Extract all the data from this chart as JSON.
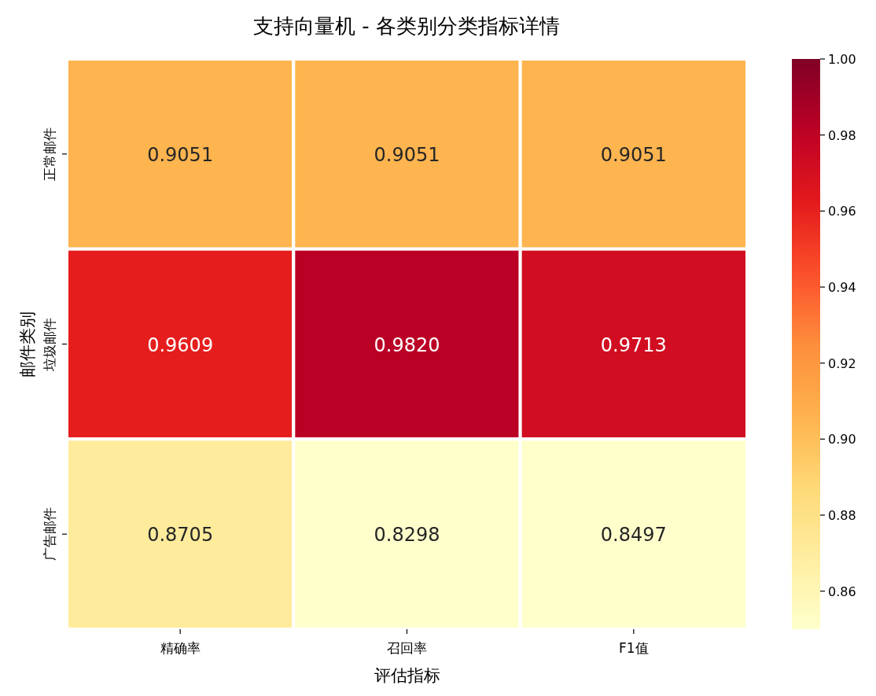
{
  "chart_data": {
    "type": "heatmap",
    "title": "支持向量机 - 各类别分类指标详情",
    "xlabel": "评估指标",
    "ylabel": "邮件类别",
    "categories": [
      "精确率",
      "召回率",
      "F1值"
    ],
    "y_categories": [
      "正常邮件",
      "垃圾邮件",
      "广告邮件"
    ],
    "cells": [
      [
        0.9051,
        0.9051,
        0.9051
      ],
      [
        0.9609,
        0.982,
        0.9713
      ],
      [
        0.8705,
        0.8298,
        0.8497
      ]
    ],
    "cell_labels": [
      [
        "0.9051",
        "0.9051",
        "0.9051"
      ],
      [
        "0.9609",
        "0.9820",
        "0.9713"
      ],
      [
        "0.8705",
        "0.8298",
        "0.8497"
      ]
    ],
    "data_labels": true,
    "clim": [
      0.85,
      1.0
    ],
    "cticks": [
      0.86,
      0.88,
      {
        "value": 0.9,
        "label": "0.90"
      },
      0.92,
      0.94,
      0.96,
      0.98,
      {
        "value": 1.0,
        "label": "1.00"
      }
    ]
  }
}
